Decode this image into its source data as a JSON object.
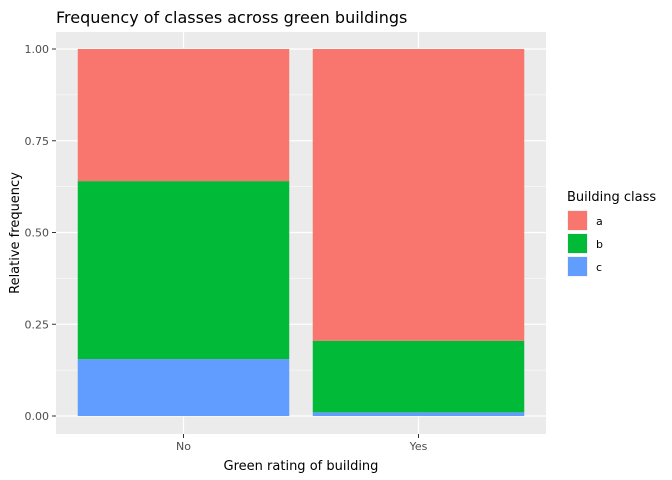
{
  "chart_data": {
    "type": "bar",
    "stacked": true,
    "title": "Frequency of classes across green buildings",
    "xlabel": "Green rating of building",
    "ylabel": "Relative frequency",
    "categories": [
      "No",
      "Yes"
    ],
    "series": [
      {
        "name": "a",
        "color": "#F8766D",
        "values": [
          0.36,
          0.795
        ]
      },
      {
        "name": "b",
        "color": "#00BA38",
        "values": [
          0.485,
          0.195
        ]
      },
      {
        "name": "c",
        "color": "#619CFF",
        "values": [
          0.155,
          0.01
        ]
      }
    ],
    "stack_order_bottom_to_top": [
      "c",
      "b",
      "a"
    ],
    "ylim": [
      0,
      1
    ],
    "yticks": [
      "0.00",
      "0.25",
      "0.50",
      "0.75",
      "1.00"
    ],
    "ytick_values": [
      0,
      0.25,
      0.5,
      0.75,
      1
    ],
    "grid": true,
    "legend_title": "Building class",
    "legend_position": "right",
    "panel_background": "#EBEBEB",
    "gridline_color": "#FFFFFF"
  }
}
